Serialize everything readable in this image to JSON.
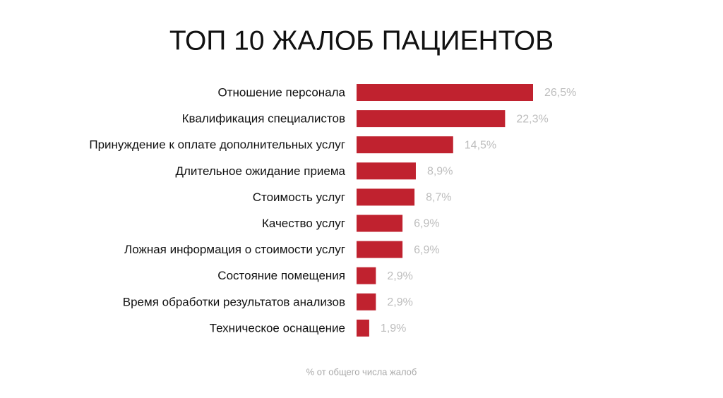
{
  "chart_data": {
    "type": "barh",
    "title": "ТОП 10 ЖАЛОБ ПАЦИЕНТОВ",
    "categories": [
      "Отношение персонала",
      "Квалификация специалистов",
      "Принуждение к оплате дополнительных услуг",
      "Длительное ожидание приема",
      "Стоимость услуг",
      "Качество услуг",
      "Ложная информация о стоимости услуг",
      "Состояние помещения",
      "Время обработки результатов анализов",
      "Техническое оснащение"
    ],
    "values": [
      26.5,
      22.3,
      14.5,
      8.9,
      8.7,
      6.9,
      6.9,
      2.9,
      2.9,
      1.9
    ],
    "value_labels": [
      "26,5%",
      "22,3%",
      "14,5%",
      "8,9%",
      "8,7%",
      "6,9%",
      "6,9%",
      "2,9%",
      "2,9%",
      "1,9%"
    ],
    "color": "#c0222f",
    "note": "% от общего числа жалоб"
  }
}
